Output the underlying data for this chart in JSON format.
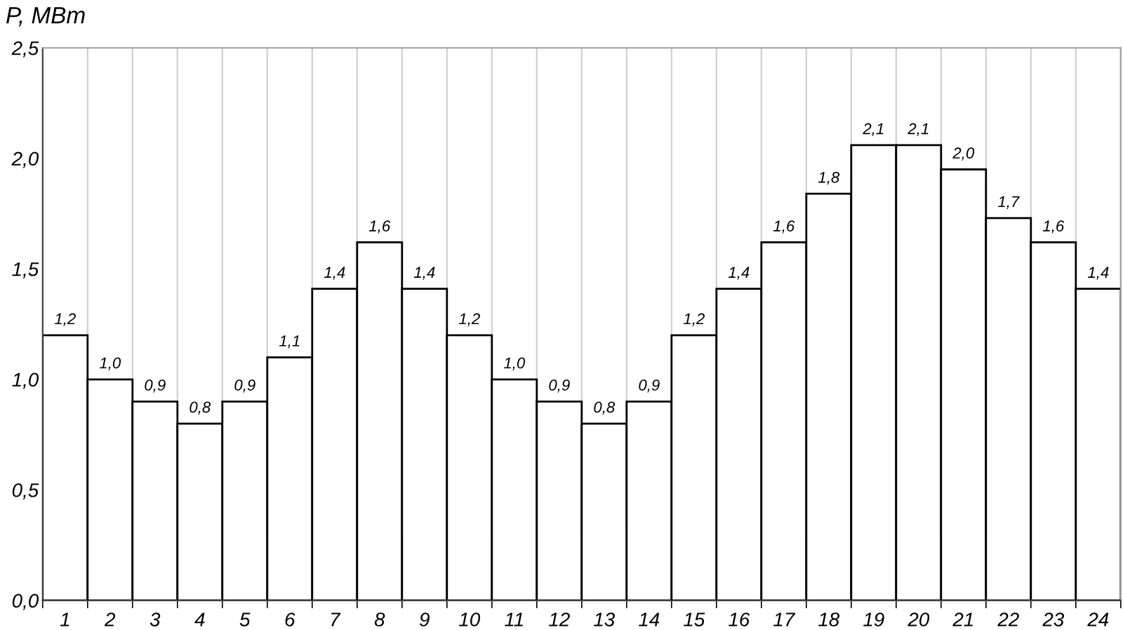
{
  "chart_data": {
    "type": "bar",
    "ylabel": "P, MBm",
    "categories": [
      "1",
      "2",
      "3",
      "4",
      "5",
      "6",
      "7",
      "8",
      "9",
      "10",
      "11",
      "12",
      "13",
      "14",
      "15",
      "16",
      "17",
      "18",
      "19",
      "20",
      "21",
      "22",
      "23",
      "24"
    ],
    "values": [
      1.2,
      1.0,
      0.9,
      0.8,
      0.9,
      1.1,
      1.41,
      1.62,
      1.41,
      1.2,
      1.0,
      0.9,
      0.8,
      0.9,
      1.2,
      1.41,
      1.62,
      1.84,
      2.06,
      2.06,
      1.95,
      1.73,
      1.62,
      1.41
    ],
    "value_labels": [
      "1,2",
      "1,0",
      "0,9",
      "0,8",
      "0,9",
      "1,1",
      "1,4",
      "1,6",
      "1,4",
      "1,2",
      "1,0",
      "0,9",
      "0,8",
      "0,9",
      "1,2",
      "1,4",
      "1,6",
      "1,8",
      "2,1",
      "2,1",
      "2,0",
      "1,7",
      "1,6",
      "1,4"
    ],
    "color": "#ffffff",
    "ylim": [
      0,
      2.5
    ],
    "yticks": [
      {
        "value": 0,
        "label": "0,0"
      },
      {
        "value": 0.5,
        "label": "0,5"
      },
      {
        "value": 1.0,
        "label": "1,0"
      },
      {
        "value": 1.5,
        "label": "1,5"
      },
      {
        "value": 2.0,
        "label": "2,0"
      },
      {
        "value": 2.5,
        "label": "2,5"
      }
    ],
    "grid": "x"
  }
}
